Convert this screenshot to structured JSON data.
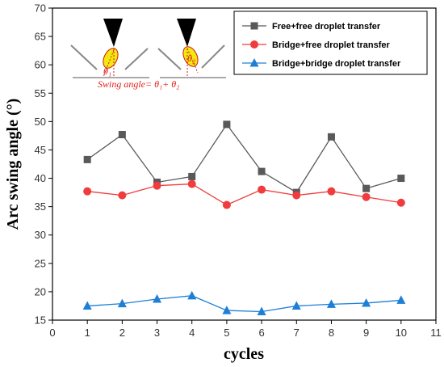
{
  "chart_data": {
    "type": "line",
    "title": "",
    "xlabel": "cycles",
    "ylabel": "Arc swing angle (°)",
    "xlim": [
      0,
      11
    ],
    "ylim": [
      15,
      70
    ],
    "x_ticks": [
      0,
      1,
      2,
      3,
      4,
      5,
      6,
      7,
      8,
      9,
      10,
      11
    ],
    "y_ticks": [
      15,
      20,
      25,
      30,
      35,
      40,
      45,
      50,
      55,
      60,
      65,
      70
    ],
    "grid": false,
    "legend_position": "top-right",
    "x": [
      1,
      2,
      3,
      4,
      5,
      6,
      7,
      8,
      9,
      10
    ],
    "series": [
      {
        "name": "Free+free droplet transfer",
        "marker": "square",
        "color": "#595959",
        "values": [
          43.3,
          47.7,
          39.3,
          40.3,
          49.5,
          41.2,
          37.5,
          47.3,
          38.2,
          40.0
        ]
      },
      {
        "name": "Bridge+free droplet transfer",
        "marker": "circle",
        "color": "#f03c3c",
        "values": [
          37.7,
          37.0,
          38.7,
          39.0,
          35.3,
          38.0,
          37.0,
          37.7,
          36.7,
          35.7
        ]
      },
      {
        "name": "Bridge+bridge droplet transfer",
        "marker": "triangle",
        "color": "#1e7fd6",
        "values": [
          17.5,
          17.9,
          18.7,
          19.3,
          16.7,
          16.5,
          17.5,
          17.8,
          18.0,
          18.5
        ]
      }
    ],
    "inset": {
      "text": "Swing angle= θ₁+ θ₂",
      "theta1": "θ₁",
      "theta2": "θ₂"
    }
  }
}
